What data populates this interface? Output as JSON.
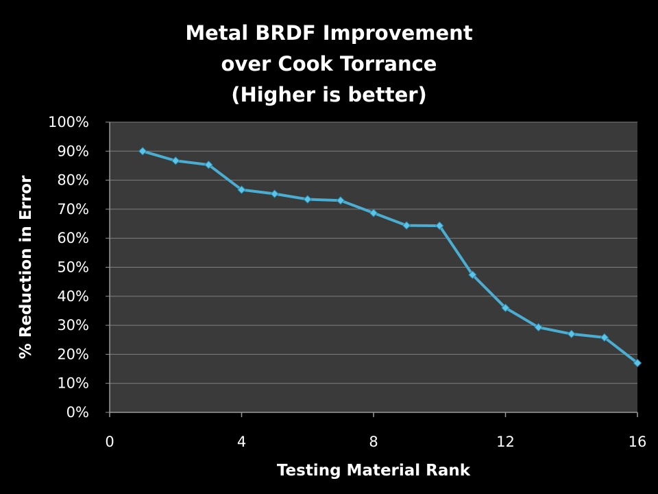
{
  "chart_data": {
    "type": "line",
    "title": [
      "Metal BRDF Improvement",
      "over Cook Torrance",
      "(Higher is better)"
    ],
    "xlabel": "Testing Material Rank",
    "ylabel": "% Reduction in Error",
    "xlim": [
      0,
      16
    ],
    "ylim": [
      0,
      100
    ],
    "x_ticks": [
      0,
      4,
      8,
      12,
      16
    ],
    "y_ticks": [
      0,
      10,
      20,
      30,
      40,
      50,
      60,
      70,
      80,
      90,
      100
    ],
    "y_tick_format": "percent",
    "grid": true,
    "legend": false,
    "series": [
      {
        "x": [
          1,
          2,
          3,
          4,
          5,
          6,
          7,
          8,
          9,
          10,
          11,
          12,
          13,
          14,
          15,
          16
        ],
        "y": [
          90,
          86.7,
          85.3,
          76.7,
          75.3,
          73.4,
          73,
          68.7,
          64.4,
          64.3,
          47.4,
          36,
          29.3,
          27,
          25.8,
          17
        ]
      }
    ],
    "colors": {
      "background": "#000000",
      "plot_area": "#3a3a3a",
      "gridline": "#808080",
      "axis": "#9a9a9a",
      "series_line": "#4aaed2",
      "marker_fill": "#5cc4e6",
      "marker_edge": "#2a86ad",
      "text": "#ffffff"
    },
    "marker": "diamond"
  }
}
